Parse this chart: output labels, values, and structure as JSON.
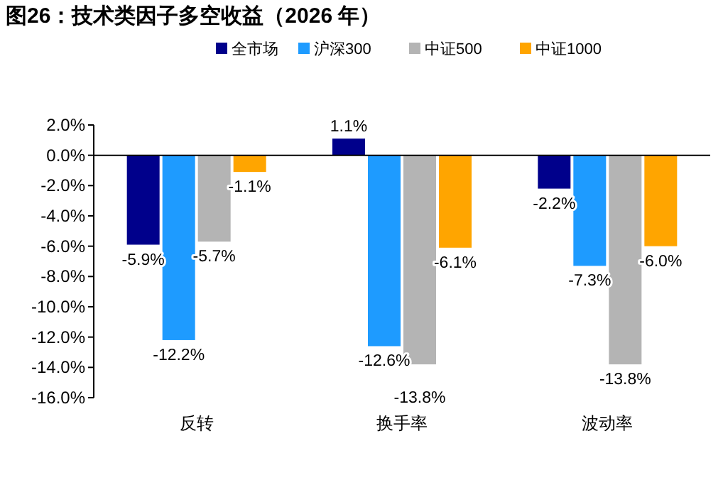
{
  "chart_data": {
    "type": "bar",
    "title": "图26：技术类因子多空收益（2026 年）",
    "categories": [
      "反转",
      "换手率",
      "波动率"
    ],
    "series": [
      {
        "name": "全市场",
        "color": "#00008b",
        "values": [
          -5.9,
          1.1,
          -2.2
        ],
        "value_labels": [
          "-5.9%",
          "1.1%",
          "-2.2%"
        ]
      },
      {
        "name": "沪深300",
        "color": "#1e9bff",
        "values": [
          -12.2,
          -12.6,
          -7.3
        ],
        "value_labels": [
          "-12.2%",
          "-12.6%",
          "-7.3%"
        ]
      },
      {
        "name": "中证500",
        "color": "#b4b4b4",
        "values": [
          -5.7,
          -13.8,
          -13.8
        ],
        "value_labels": [
          "-5.7%",
          "-13.8%",
          "-13.8%"
        ]
      },
      {
        "name": "中证1000",
        "color": "#ffa500",
        "values": [
          -1.1,
          -6.1,
          -6.0
        ],
        "value_labels": [
          "-1.1%",
          "-6.1%",
          "-6.0%"
        ]
      }
    ],
    "ylim": [
      -16,
      2
    ],
    "yticks": [
      {
        "value": -16,
        "label": "-16.0%"
      },
      {
        "value": -14,
        "label": "-14.0%"
      },
      {
        "value": -12,
        "label": "-12.0%"
      },
      {
        "value": -10,
        "label": "-10.0%"
      },
      {
        "value": -8,
        "label": "-8.0%"
      },
      {
        "value": -6,
        "label": "-6.0%"
      },
      {
        "value": -4,
        "label": "-4.0%"
      },
      {
        "value": -2,
        "label": "-2.0%"
      },
      {
        "value": 0,
        "label": "0.0%"
      },
      {
        "value": 2,
        "label": "2.0%"
      }
    ],
    "legend": "top"
  }
}
